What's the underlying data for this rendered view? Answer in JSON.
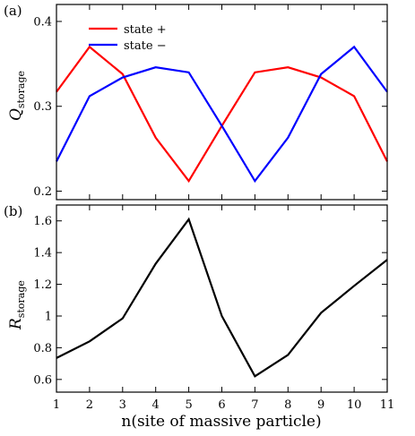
{
  "chart_data": [
    {
      "panel_label": "(a)",
      "type": "line",
      "ylabel": "Q",
      "ylabel_sub": "storage",
      "x": [
        1,
        2,
        3,
        4,
        5,
        6,
        7,
        8,
        9,
        10,
        11
      ],
      "xlim": [
        1,
        11
      ],
      "ylim": [
        0.19,
        0.42
      ],
      "yticks": [
        "0.2",
        "0.3",
        "0.4"
      ],
      "series": [
        {
          "name": "state +",
          "color": "#ff0000",
          "values": [
            0.317,
            0.37,
            0.338,
            0.263,
            0.212,
            0.277,
            0.34,
            0.346,
            0.334,
            0.312,
            0.235
          ]
        },
        {
          "name": "state −",
          "color": "#0000ff",
          "values": [
            0.235,
            0.312,
            0.334,
            0.346,
            0.34,
            0.277,
            0.212,
            0.263,
            0.338,
            0.37,
            0.317
          ]
        }
      ],
      "legend_position": "top-left"
    },
    {
      "panel_label": "(b)",
      "type": "line",
      "ylabel": "R",
      "ylabel_sub": "storage",
      "xlabel": "n(site of massive particle)",
      "x": [
        1,
        2,
        3,
        4,
        5,
        6,
        7,
        8,
        9,
        10,
        11
      ],
      "xticks": [
        "1",
        "2",
        "3",
        "4",
        "5",
        "6",
        "7",
        "8",
        "9",
        "10",
        "11"
      ],
      "xlim": [
        1,
        11
      ],
      "ylim": [
        0.52,
        1.7
      ],
      "yticks": [
        "0.6",
        "0.8",
        "1",
        "1.2",
        "1.4",
        "1.6"
      ],
      "series": [
        {
          "color": "#000000",
          "values": [
            0.735,
            0.84,
            0.985,
            1.33,
            1.61,
            1.0,
            0.62,
            0.755,
            1.02,
            1.19,
            1.355
          ]
        }
      ]
    }
  ]
}
